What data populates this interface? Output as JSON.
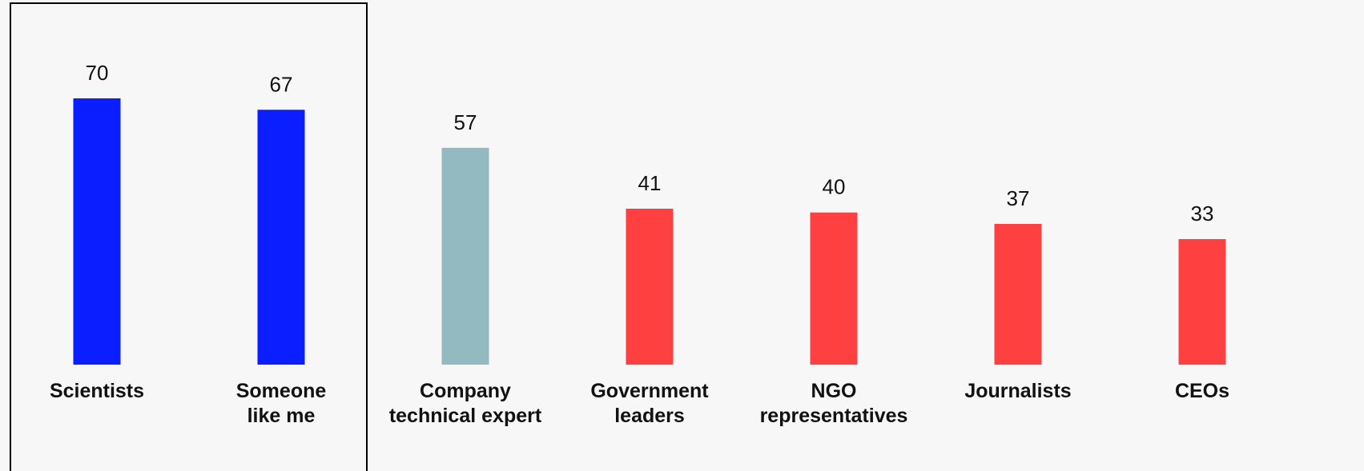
{
  "chart_data": {
    "type": "bar",
    "categories": [
      [
        "Scientists"
      ],
      [
        "Someone",
        "like me"
      ],
      [
        "Company",
        "technical expert"
      ],
      [
        "Government",
        "leaders"
      ],
      [
        "NGO",
        "representatives"
      ],
      [
        "Journalists"
      ],
      [
        "CEOs"
      ]
    ],
    "values": [
      70,
      67,
      57,
      41,
      40,
      37,
      33
    ],
    "colors": [
      "#0a1eff",
      "#0a1eff",
      "#93bac0",
      "#ff4040",
      "#ff4040",
      "#ff4040",
      "#ff4040"
    ]
  }
}
